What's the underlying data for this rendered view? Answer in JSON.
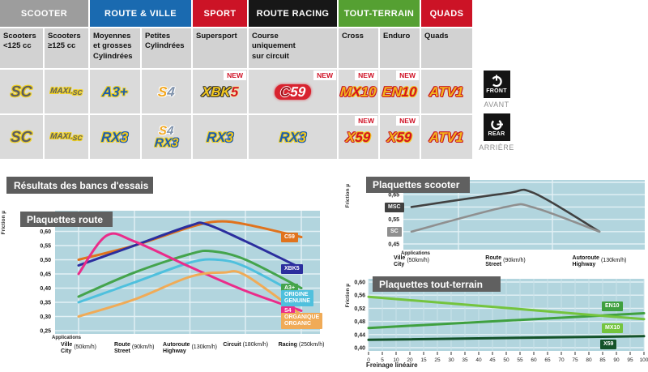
{
  "table": {
    "new_label": "NEW",
    "groups": [
      {
        "label": "SCOOTER",
        "color": "#9d9d9d",
        "span": 2
      },
      {
        "label": "ROUTE & VILLE",
        "color": "#1a6ab0",
        "span": 2
      },
      {
        "label": "SPORT",
        "color": "#cc1326",
        "span": 1
      },
      {
        "label": "ROUTE RACING",
        "color": "#171717",
        "span": 1
      },
      {
        "label": "TOUT-TERRAIN",
        "color": "#55a032",
        "span": 2
      },
      {
        "label": "QUADS",
        "color": "#cc1326",
        "span": 1
      }
    ],
    "subheaders": [
      [
        "Scooters",
        "<125 cc"
      ],
      [
        "Scooters",
        "≥125 cc"
      ],
      [
        "Moyennes",
        "et grosses",
        "Cylindrées"
      ],
      [
        "Petites",
        "Cylindrées"
      ],
      [
        "Supersport"
      ],
      [
        "Course",
        "uniquement",
        "sur circuit"
      ],
      [
        "Cross"
      ],
      [
        "Enduro"
      ],
      [
        "Quads"
      ]
    ],
    "rows": [
      {
        "side": "front",
        "cells": [
          {
            "logos": [
              [
                {
                  "t": "SC",
                  "s": "gy",
                  "cls": "big"
                }
              ]
            ]
          },
          {
            "logos": [
              [
                {
                  "t": "MAXI",
                  "s": "gy",
                  "cls": "maxi"
                },
                {
                  "t": "-SC",
                  "s": "gy",
                  "cls": "maxisub"
                }
              ]
            ]
          },
          {
            "logos": [
              [
                {
                  "t": "A3+",
                  "s": "by"
                }
              ]
            ]
          },
          {
            "logos": [
              [
                {
                  "t": "S",
                  "s": "ow"
                },
                {
                  "t": "4",
                  "s": "sw"
                }
              ]
            ]
          },
          {
            "new": true,
            "logos": [
              [
                {
                  "t": "XBK",
                  "s": "yk"
                },
                {
                  "t": "5",
                  "s": "rk"
                }
              ]
            ]
          },
          {
            "new": true,
            "pill": true,
            "logos": [
              [
                {
                  "t": "C",
                  "s": "cw"
                },
                {
                  "t": "59",
                  "s": "wp"
                }
              ]
            ]
          },
          {
            "new": true,
            "logos": [
              [
                {
                  "t": "M",
                  "s": "yr"
                },
                {
                  "t": "X",
                  "s": "ry"
                },
                {
                  "t": "10",
                  "s": "yr"
                }
              ]
            ]
          },
          {
            "new": true,
            "logos": [
              [
                {
                  "t": "EN",
                  "s": "yr"
                },
                {
                  "t": "10",
                  "s": "ry"
                }
              ]
            ]
          },
          {
            "logos": [
              [
                {
                  "t": "ATV1",
                  "s": "yr"
                }
              ]
            ]
          }
        ]
      },
      {
        "side": "rear",
        "cells": [
          {
            "logos": [
              [
                {
                  "t": "SC",
                  "s": "gy",
                  "cls": "big"
                }
              ]
            ]
          },
          {
            "logos": [
              [
                {
                  "t": "MAXI",
                  "s": "gy",
                  "cls": "maxi"
                },
                {
                  "t": "-SC",
                  "s": "gy",
                  "cls": "maxisub"
                }
              ]
            ]
          },
          {
            "logos": [
              [
                {
                  "t": "RX",
                  "s": "by"
                },
                {
                  "t": "3",
                  "s": "yb"
                }
              ]
            ]
          },
          {
            "stack": true,
            "logos": [
              [
                {
                  "t": "S",
                  "s": "ow"
                },
                {
                  "t": "4",
                  "s": "sw"
                }
              ],
              [
                {
                  "t": "RX",
                  "s": "by"
                },
                {
                  "t": "3",
                  "s": "yb"
                }
              ]
            ]
          },
          {
            "logos": [
              [
                {
                  "t": "RX",
                  "s": "by"
                },
                {
                  "t": "3",
                  "s": "yb"
                }
              ]
            ]
          },
          {
            "logos": [
              [
                {
                  "t": "RX",
                  "s": "by"
                },
                {
                  "t": "3",
                  "s": "yb"
                }
              ]
            ]
          },
          {
            "new": true,
            "logos": [
              [
                {
                  "t": "X",
                  "s": "yr"
                },
                {
                  "t": "59",
                  "s": "ry"
                }
              ]
            ]
          },
          {
            "new": true,
            "logos": [
              [
                {
                  "t": "X",
                  "s": "yr"
                },
                {
                  "t": "59",
                  "s": "ry"
                }
              ]
            ]
          },
          {
            "logos": [
              [
                {
                  "t": "ATV1",
                  "s": "yr"
                }
              ]
            ]
          }
        ]
      }
    ]
  },
  "side_icons": {
    "front": {
      "label": "FRONT",
      "sub": "AVANT"
    },
    "rear": {
      "label": "REAR",
      "sub": "ARRIÈRE"
    }
  },
  "section_title": "Résultats des bancs d'essais",
  "chart_data": [
    {
      "id": "route",
      "type": "line",
      "title": "Plaquettes route",
      "ylabel": "Friction µ",
      "xlabel": "Applications",
      "ylim": [
        0.25,
        0.65
      ],
      "grid": true,
      "legend_position": "right-inside",
      "yticks": [
        "0,65",
        "0,60",
        "0,55",
        "0,50",
        "0,45",
        "0,40",
        "0,35",
        "0,30",
        "0,25"
      ],
      "categories": [
        {
          "lines": [
            "Ville",
            "City"
          ],
          "speed": "(50km/h)"
        },
        {
          "lines": [
            "Route",
            "Street"
          ],
          "speed": "(90km/h)"
        },
        {
          "lines": [
            "Autoroute",
            "Highway"
          ],
          "speed": "(130km/h)"
        },
        {
          "lines": [
            "Circuit"
          ],
          "speed": "(180km/h)"
        },
        {
          "lines": [
            "Racing"
          ],
          "speed": "(250km/h)"
        }
      ],
      "series": [
        {
          "id": "C59",
          "label": [
            "C59"
          ],
          "color": "#e0731d",
          "points": [
            [
              0,
              0.5
            ],
            [
              1,
              0.55
            ],
            [
              2,
              0.615
            ],
            [
              2.5,
              0.635
            ],
            [
              3,
              0.625
            ],
            [
              4,
              0.58
            ]
          ]
        },
        {
          "id": "XBK5",
          "label": [
            "XBK5"
          ],
          "color": "#2b2e9e",
          "points": [
            [
              0,
              0.48
            ],
            [
              1,
              0.55
            ],
            [
              2,
              0.62
            ],
            [
              2.3,
              0.625
            ],
            [
              3,
              0.565
            ],
            [
              4,
              0.47
            ]
          ]
        },
        {
          "id": "A3",
          "label": [
            "A3+"
          ],
          "color": "#44a44c",
          "points": [
            [
              0,
              0.37
            ],
            [
              1,
              0.455
            ],
            [
              2,
              0.52
            ],
            [
              2.4,
              0.53
            ],
            [
              3,
              0.5
            ],
            [
              4,
              0.4
            ]
          ]
        },
        {
          "id": "ORIGINE",
          "label": [
            "ORIGINE",
            "GENUINE"
          ],
          "color": "#4fc0dd",
          "points": [
            [
              0,
              0.35
            ],
            [
              1,
              0.42
            ],
            [
              2,
              0.49
            ],
            [
              2.5,
              0.5
            ],
            [
              3,
              0.475
            ],
            [
              4,
              0.37
            ]
          ]
        },
        {
          "id": "S4",
          "label": [
            "S4"
          ],
          "color": "#ea2c8a",
          "points": [
            [
              0,
              0.45
            ],
            [
              0.5,
              0.585
            ],
            [
              1,
              0.565
            ],
            [
              2,
              0.475
            ],
            [
              3,
              0.39
            ],
            [
              4,
              0.32
            ]
          ]
        },
        {
          "id": "ORGANIQUE",
          "label": [
            "ORGANIQUE",
            "ORGANIC"
          ],
          "color": "#f0ab57",
          "points": [
            [
              0,
              0.3
            ],
            [
              1,
              0.36
            ],
            [
              2,
              0.44
            ],
            [
              2.6,
              0.455
            ],
            [
              3,
              0.445
            ],
            [
              4,
              0.305
            ]
          ]
        }
      ]
    },
    {
      "id": "scooter",
      "type": "line",
      "title": "Plaquettes scooter",
      "ylabel": "Friction µ",
      "xlabel": "Applications",
      "ylim": [
        0.45,
        0.7
      ],
      "grid": true,
      "legend_position": "left-inside",
      "yticks": [
        "0,70",
        "0,65",
        "0,60",
        "0,55",
        "0,50",
        "0,45"
      ],
      "categories": [
        {
          "lines": [
            "Ville",
            "City"
          ],
          "speed": "(50km/h)"
        },
        {
          "lines": [
            "Route",
            "Street"
          ],
          "speed": "(90km/h)"
        },
        {
          "lines": [
            "Autoroute",
            "Highway"
          ],
          "speed": "(130km/h)"
        }
      ],
      "series": [
        {
          "id": "MSC",
          "label": [
            "MSC"
          ],
          "color": "#414141",
          "points": [
            [
              0,
              0.6
            ],
            [
              1,
              0.655
            ],
            [
              1.3,
              0.657
            ],
            [
              2,
              0.5
            ]
          ]
        },
        {
          "id": "SC",
          "label": [
            "SC"
          ],
          "color": "#8f8f8f",
          "points": [
            [
              0,
              0.5
            ],
            [
              1,
              0.6
            ],
            [
              1.3,
              0.598
            ],
            [
              2,
              0.5
            ]
          ]
        }
      ]
    },
    {
      "id": "tt",
      "type": "line",
      "title": "Plaquettes tout-terrain",
      "ylabel": "Friction µ",
      "xlabel": "Freinage linéaire",
      "ylim": [
        0.4,
        0.6
      ],
      "xlim": [
        0,
        100
      ],
      "grid": true,
      "legend_position": "right-inside",
      "yticks": [
        "0,60",
        "0,56",
        "0,52",
        "0,48",
        "0,44",
        "0,40"
      ],
      "xticks": [
        "0",
        "5",
        "10",
        "20",
        "15",
        "25",
        "30",
        "35",
        "40",
        "45",
        "50",
        "55",
        "60",
        "65",
        "70",
        "75",
        "80",
        "85",
        "90",
        "95",
        "100"
      ],
      "series": [
        {
          "id": "EN10",
          "label": [
            "EN10"
          ],
          "color": "#3fa03f",
          "points": [
            [
              0,
              0.46
            ],
            [
              100,
              0.505
            ]
          ]
        },
        {
          "id": "MX10",
          "label": [
            "MX10"
          ],
          "color": "#74c43e",
          "points": [
            [
              0,
              0.555
            ],
            [
              100,
              0.487
            ]
          ]
        },
        {
          "id": "X59",
          "label": [
            "X59"
          ],
          "color": "#14532a",
          "points": [
            [
              0,
              0.424
            ],
            [
              100,
              0.435
            ]
          ]
        }
      ]
    }
  ]
}
